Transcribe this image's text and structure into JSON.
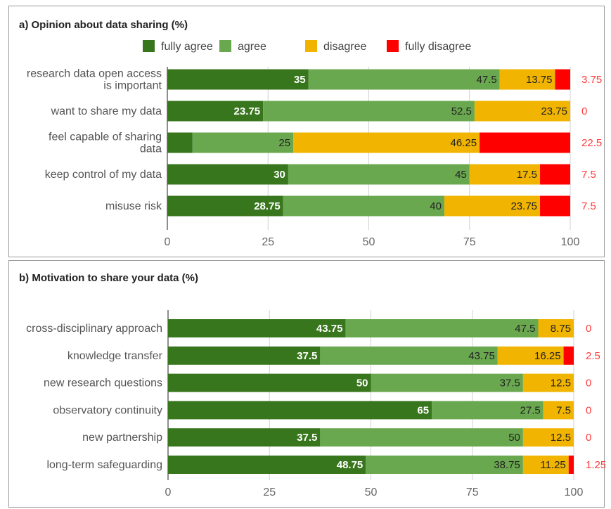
{
  "legend": [
    {
      "name": "fully agree",
      "color": "#38761d"
    },
    {
      "name": "agree",
      "color": "#6aa84f"
    },
    {
      "name": "disagree",
      "color": "#f1b400"
    },
    {
      "name": "fully disagree",
      "color": "#ff0000"
    }
  ],
  "chart_data": [
    {
      "type": "bar",
      "orientation": "horizontal",
      "stacked": true,
      "title": "a) Opinion about data sharing (%)",
      "xlim": [
        0,
        100
      ],
      "xticks": [
        0,
        25,
        50,
        75,
        100
      ],
      "legend_position": "top",
      "categories": [
        "research data open access\nis important",
        "want to share my data",
        "feel capable of sharing\ndata",
        "keep control of my data",
        "misuse risk"
      ],
      "series": [
        {
          "name": "fully agree",
          "color": "#38761d",
          "values": [
            35,
            23.75,
            6.25,
            30,
            28.75
          ]
        },
        {
          "name": "agree",
          "color": "#6aa84f",
          "values": [
            47.5,
            52.5,
            25,
            45,
            40
          ]
        },
        {
          "name": "disagree",
          "color": "#f1b400",
          "values": [
            13.75,
            23.75,
            46.25,
            17.5,
            23.75
          ]
        },
        {
          "name": "fully disagree",
          "color": "#ff0000",
          "values": [
            3.75,
            0,
            22.5,
            7.5,
            7.5
          ]
        }
      ]
    },
    {
      "type": "bar",
      "orientation": "horizontal",
      "stacked": true,
      "title": "b) Motivation to share your data (%)",
      "xlim": [
        0,
        100
      ],
      "xticks": [
        0,
        25,
        50,
        75,
        100
      ],
      "categories": [
        "cross-disciplinary approach",
        "knowledge transfer",
        "new research questions",
        "observatory continuity",
        "new partnership",
        "long-term safeguarding"
      ],
      "series": [
        {
          "name": "fully agree",
          "color": "#38761d",
          "values": [
            43.75,
            37.5,
            50,
            65,
            37.5,
            48.75
          ]
        },
        {
          "name": "agree",
          "color": "#6aa84f",
          "values": [
            47.5,
            43.75,
            37.5,
            27.5,
            50,
            38.75
          ]
        },
        {
          "name": "disagree",
          "color": "#f1b400",
          "values": [
            8.75,
            16.25,
            12.5,
            7.5,
            12.5,
            11.25
          ]
        },
        {
          "name": "fully disagree",
          "color": "#ff0000",
          "values": [
            0,
            2.5,
            0,
            0,
            0,
            1.25
          ]
        }
      ]
    }
  ]
}
